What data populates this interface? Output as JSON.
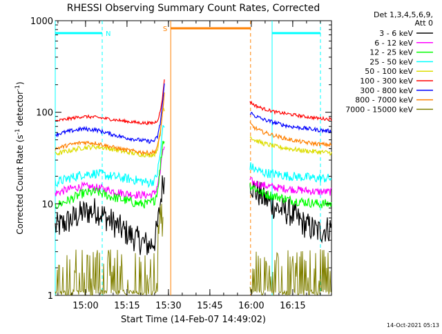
{
  "chart_data": {
    "type": "line",
    "title": "RHESSI Observing Summary Count Rates, Corrected",
    "xlabel": "Start Time (14-Feb-07 14:49:02)",
    "ylabel_main": "Corrected Count Rate (s",
    "ylabel_sup1": "-1",
    "ylabel_mid": " detector",
    "ylabel_sup2": "-1",
    "ylabel_end": ")",
    "y_scale": "log",
    "ylim": [
      1,
      1000
    ],
    "xlim_minutes_after_start": [
      0,
      100
    ],
    "x_tick_labels": [
      "15:00",
      "15:15",
      "15:30",
      "15:45",
      "16:00",
      "16:15"
    ],
    "x_tick_minutes": [
      10.97,
      25.97,
      40.97,
      55.97,
      70.97,
      85.97
    ],
    "y_tick_labels": [
      "1",
      "10",
      "100",
      "1000"
    ],
    "y_tick_values": [
      1,
      10,
      100,
      1000
    ],
    "legend": {
      "position": "top-right",
      "header_line1": "Det 1,3,4,5,6,9,",
      "header_line2": "Att 0",
      "entries": [
        {
          "label": "3 - 6 keV",
          "color": "#000000"
        },
        {
          "label": "6 - 12 keV",
          "color": "#ff00ff"
        },
        {
          "label": "12 - 25 keV",
          "color": "#00ff00"
        },
        {
          "label": "25 - 50 keV",
          "color": "#00ffff"
        },
        {
          "label": "50 - 100 keV",
          "color": "#dddd00"
        },
        {
          "label": "100 - 300 keV",
          "color": "#ff0000"
        },
        {
          "label": "300 - 800 keV",
          "color": "#0000ff"
        },
        {
          "label": "800 - 7000 keV",
          "color": "#ff8000"
        },
        {
          "label": "7000 - 15000 keV",
          "color": "#808000"
        }
      ]
    },
    "series": [
      {
        "name": "3 - 6 keV",
        "color": "#000000",
        "noise": 0.35,
        "x": [
          0,
          5,
          10,
          15,
          20,
          25,
          30,
          34,
          36,
          37,
          38,
          39,
          70.5,
          72,
          75,
          80,
          85,
          90,
          95,
          100
        ],
        "y": [
          5.5,
          6.5,
          8,
          8.5,
          6.5,
          5,
          4,
          3.5,
          4,
          5.5,
          10,
          18,
          18,
          14,
          12,
          9,
          8,
          6,
          5,
          5.5
        ]
      },
      {
        "name": "6 - 12 keV",
        "color": "#ff00ff",
        "noise": 0.1,
        "x": [
          0,
          5,
          10,
          15,
          20,
          25,
          30,
          34,
          36,
          37,
          38,
          39,
          70.5,
          72,
          75,
          80,
          85,
          90,
          95,
          100
        ],
        "y": [
          13,
          14.5,
          15.5,
          15,
          14,
          13,
          12.5,
          12.5,
          13,
          16,
          22,
          40,
          18,
          17,
          16,
          15,
          14.5,
          14,
          13.5,
          13.5
        ]
      },
      {
        "name": "12 - 25 keV",
        "color": "#00ff00",
        "noise": 0.12,
        "x": [
          0,
          5,
          10,
          15,
          20,
          25,
          30,
          34,
          36,
          37,
          38,
          39,
          70.5,
          72,
          75,
          80,
          85,
          90,
          95,
          100
        ],
        "y": [
          9.5,
          11,
          13,
          13.5,
          12,
          11,
          10,
          10,
          11,
          14,
          25,
          50,
          16,
          15,
          13,
          12,
          11,
          10.5,
          10,
          10
        ]
      },
      {
        "name": "25 - 50 keV",
        "color": "#00ffff",
        "noise": 0.12,
        "x": [
          0,
          5,
          10,
          15,
          20,
          25,
          30,
          34,
          36,
          37,
          38,
          39,
          70.5,
          72,
          75,
          80,
          85,
          90,
          95,
          100
        ],
        "y": [
          17,
          19,
          21,
          21.5,
          20,
          19,
          18,
          17,
          18,
          22,
          35,
          70,
          26,
          24,
          22,
          21,
          20,
          19.5,
          19,
          19
        ]
      },
      {
        "name": "50 - 100 keV",
        "color": "#dddd00",
        "noise": 0.06,
        "x": [
          0,
          5,
          10,
          15,
          20,
          25,
          30,
          34,
          36,
          37,
          38,
          39,
          70.5,
          72,
          75,
          80,
          85,
          90,
          95,
          100
        ],
        "y": [
          35,
          38,
          41,
          42,
          40,
          37,
          35,
          34,
          35,
          40,
          60,
          110,
          55,
          50,
          46,
          42,
          40,
          38,
          37,
          36
        ]
      },
      {
        "name": "100 - 300 keV",
        "color": "#ff0000",
        "noise": 0.04,
        "x": [
          0,
          5,
          10,
          15,
          20,
          25,
          30,
          34,
          36,
          37,
          38,
          39,
          39.5,
          70.5,
          72,
          75,
          80,
          85,
          90,
          95,
          100
        ],
        "y": [
          80,
          85,
          90,
          88,
          84,
          80,
          77,
          76,
          77,
          82,
          100,
          160,
          235,
          130,
          120,
          110,
          100,
          95,
          90,
          86,
          84
        ]
      },
      {
        "name": "300 - 800 keV",
        "color": "#0000ff",
        "noise": 0.05,
        "x": [
          0,
          5,
          10,
          15,
          20,
          25,
          30,
          34,
          36,
          37,
          38,
          39,
          39.5,
          70.5,
          72,
          75,
          80,
          85,
          90,
          95,
          100
        ],
        "y": [
          57,
          62,
          66,
          64,
          58,
          53,
          50,
          48,
          49,
          54,
          75,
          140,
          200,
          100,
          92,
          84,
          76,
          70,
          67,
          64,
          62
        ]
      },
      {
        "name": "800 - 7000 keV",
        "color": "#ff8000",
        "noise": 0.05,
        "x": [
          0,
          5,
          10,
          15,
          20,
          25,
          30,
          34,
          36,
          37,
          38,
          39,
          39.5,
          70.5,
          72,
          75,
          80,
          85,
          90,
          95,
          100
        ],
        "y": [
          40,
          44,
          47,
          46,
          42,
          39,
          37,
          36,
          37,
          42,
          58,
          110,
          160,
          75,
          68,
          61,
          55,
          50,
          47,
          45,
          44
        ]
      },
      {
        "name": "7000 - 15000 keV",
        "color": "#808000",
        "noise": 0,
        "x": [
          0,
          100
        ],
        "y": [
          1,
          1
        ]
      }
    ],
    "orbit_flags": [
      {
        "label": "N",
        "color": "#00ffff",
        "start_min": 0,
        "end_min": 17
      },
      {
        "label": "",
        "color": "#00ffff",
        "start_min": 78.5,
        "end_min": 96
      }
    ],
    "saa_flag": {
      "label": "S",
      "color": "#ff8000",
      "start_min": 41.8,
      "end_min": 70.7
    }
  },
  "footer": {
    "timestamp": "14-Oct-2021 05:13"
  }
}
